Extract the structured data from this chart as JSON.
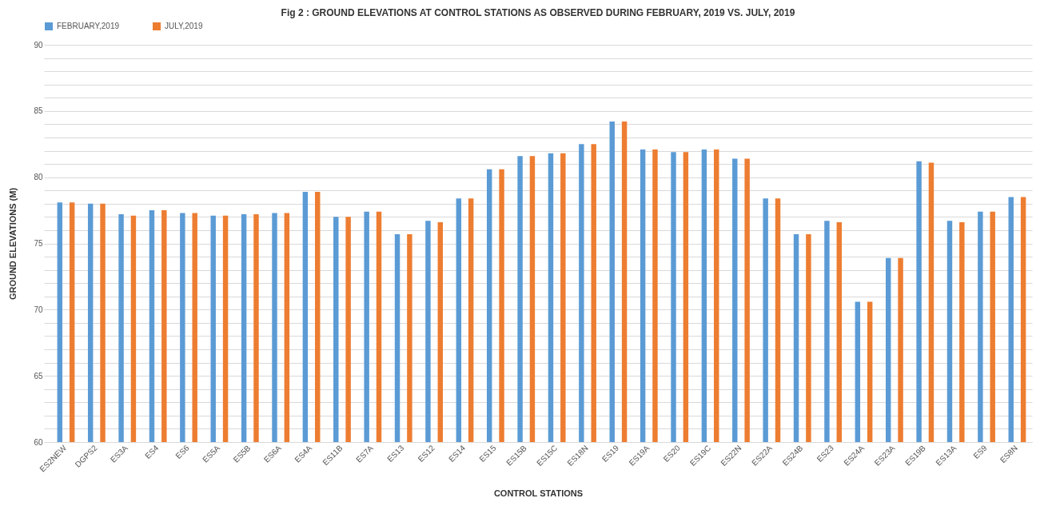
{
  "chart_data": {
    "type": "bar",
    "title": "Fig 2 : GROUND ELEVATIONS AT CONTROL STATIONS AS OBSERVED DURING FEBRUARY, 2019 VS. JULY, 2019",
    "xlabel": "CONTROL STATIONS",
    "ylabel": "GROUND ELEVATIONS (M)",
    "categories": [
      "ES2NEW",
      "DGPS2",
      "ES3A",
      "ES4",
      "ES6",
      "ES5A",
      "ES5B",
      "ES6A",
      "ES4A",
      "ES11B",
      "ES7A",
      "ES13",
      "ES12",
      "ES14",
      "ES15",
      "ES15B",
      "ES15C",
      "ES18N",
      "ES19",
      "ES19A",
      "ES20",
      "ES19C",
      "ES22N",
      "ES22A",
      "ES24B",
      "ES23",
      "ES24A",
      "ES23A",
      "ES19B",
      "ES13A",
      "ES9",
      "ES8N"
    ],
    "series": [
      {
        "name": "FEBRUARY,2019",
        "color": "#5b9bd5",
        "values": [
          78.1,
          78.0,
          77.2,
          77.5,
          77.3,
          77.1,
          77.2,
          77.3,
          78.9,
          77.0,
          77.4,
          75.7,
          76.7,
          78.4,
          80.6,
          81.6,
          81.8,
          82.5,
          84.2,
          82.1,
          81.9,
          82.1,
          81.4,
          78.4,
          75.7,
          76.7,
          70.6,
          73.9,
          81.2,
          76.7,
          77.4,
          78.5
        ]
      },
      {
        "name": "JULY,2019",
        "color": "#ed7d31",
        "values": [
          78.1,
          78.0,
          77.1,
          77.5,
          77.3,
          77.1,
          77.2,
          77.3,
          78.9,
          77.0,
          77.4,
          75.7,
          76.6,
          78.4,
          80.6,
          81.6,
          81.8,
          82.5,
          84.2,
          82.1,
          81.9,
          82.1,
          81.4,
          78.4,
          75.7,
          76.6,
          70.6,
          73.9,
          81.1,
          76.6,
          77.4,
          78.5
        ]
      }
    ],
    "ylim": [
      60,
      90
    ],
    "yticks": [
      60,
      {
        "value": 61,
        "label": null
      },
      {
        "value": 62,
        "label": null
      },
      {
        "value": 63,
        "label": null
      },
      {
        "value": 64,
        "label": null
      },
      65,
      {
        "value": 66,
        "label": null
      },
      {
        "value": 67,
        "label": null
      },
      {
        "value": 68,
        "label": null
      },
      {
        "value": 69,
        "label": null
      },
      70,
      {
        "value": 71,
        "label": null
      },
      {
        "value": 72,
        "label": null
      },
      {
        "value": 73,
        "label": null
      },
      {
        "value": 74,
        "label": null
      },
      75,
      {
        "value": 76,
        "label": null
      },
      {
        "value": 77,
        "label": null
      },
      {
        "value": 78,
        "label": null
      },
      {
        "value": 79,
        "label": null
      },
      80,
      {
        "value": 81,
        "label": null
      },
      {
        "value": 82,
        "label": null
      },
      {
        "value": 83,
        "label": null
      },
      {
        "value": 84,
        "label": null
      },
      85,
      {
        "value": 86,
        "label": null
      },
      {
        "value": 87,
        "label": null
      },
      {
        "value": 88,
        "label": null
      },
      {
        "value": 89,
        "label": null
      },
      90
    ],
    "grid": "y",
    "legend": "top"
  }
}
